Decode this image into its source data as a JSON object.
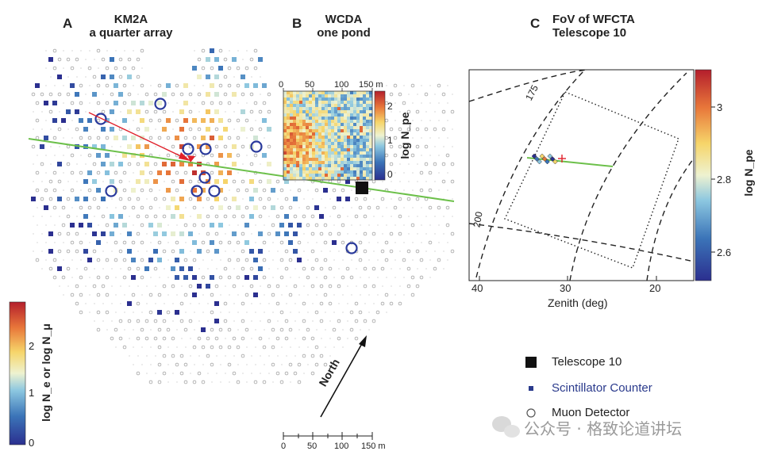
{
  "panel_a": {
    "letter": "A",
    "title_line1": "KM2A",
    "title_line2": "a quarter array",
    "colorbar": {
      "label": "log N_e or log N_μ",
      "ticks": [
        "0",
        "1",
        "2"
      ],
      "range": [
        0,
        2.6
      ]
    }
  },
  "panel_b": {
    "letter": "B",
    "title_line1": "WCDA",
    "title_line2": "one pond",
    "scale_ticks": [
      "0",
      "50",
      "100",
      "150 m"
    ],
    "colorbar": {
      "label": "log N_pe",
      "ticks": [
        "0",
        "1",
        "2"
      ],
      "range": [
        0,
        2.6
      ]
    }
  },
  "panel_c": {
    "letter": "C",
    "title_line1": "FoV of WFCTA",
    "title_line2": "Telescope 10",
    "xaxis_label": "Zenith (deg)",
    "xticks": [
      "40",
      "30",
      "20"
    ],
    "contour_labels": [
      "175",
      "200"
    ],
    "colorbar": {
      "label": "log N_pe",
      "ticks": [
        "3",
        "2.8",
        "2.6"
      ],
      "range": [
        2.5,
        3.1
      ]
    }
  },
  "north_label": "North",
  "bottom_scale_ticks": [
    "0",
    "50",
    "100",
    "150 m"
  ],
  "legend": [
    {
      "label": "Telescope 10",
      "marker": "filled-square",
      "color": "#111111"
    },
    {
      "label": "Scintillator Counter",
      "marker": "small-square",
      "color": "#2a3a8c"
    },
    {
      "label": "Muon Detector",
      "marker": "circle",
      "color": "#555555"
    }
  ],
  "watermark": "公众号 · 格致论道讲坛",
  "colors": {
    "track": "#6cc04a",
    "shower_axis": "#e0202a",
    "detector_blue": "#2a3a9c"
  }
}
